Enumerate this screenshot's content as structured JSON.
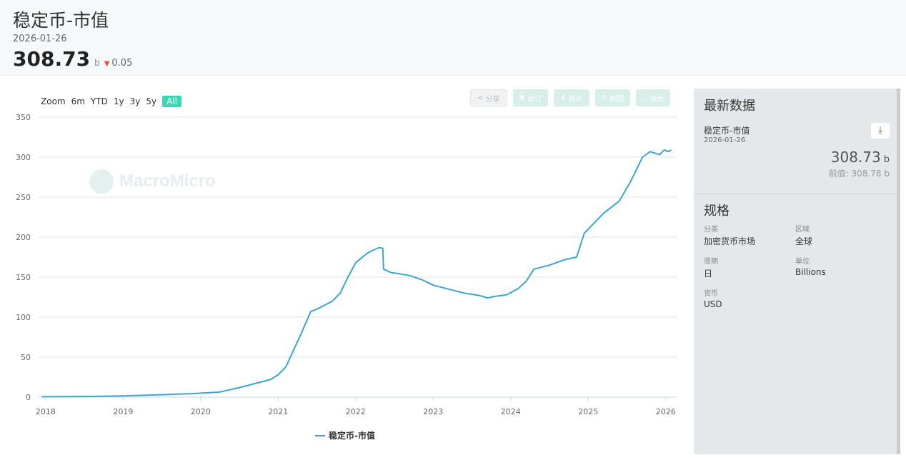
{
  "header": {
    "title": "稳定币-市值",
    "date": "2026-01-26",
    "value": "308.73",
    "unit": "b",
    "change": "0.05"
  },
  "zoom": {
    "label": "Zoom",
    "buttons": [
      "6m",
      "YTD",
      "1y",
      "3y",
      "5y",
      "All"
    ],
    "active": "All"
  },
  "toolbar": {
    "share": "分享",
    "subscribe": "会订",
    "image": "图片",
    "draw": "制图",
    "expand": "放大"
  },
  "watermark": "MacroMicro",
  "sidebar": {
    "latest_title": "最新数据",
    "series_name": "稳定币-市值",
    "series_date": "2026-01-26",
    "value": "308.73",
    "unit": "b",
    "prev_label": "前值:",
    "prev_value": "308.78",
    "spec_title": "规格",
    "category_label": "分类",
    "category": "加密货币市场",
    "region_label": "区域",
    "region": "全球",
    "period_label": "周期",
    "period": "日",
    "unit_label": "单位",
    "unit_value": "Billions",
    "currency_label": "货币",
    "currency": "USD"
  },
  "chart_data": {
    "type": "line",
    "series": [
      {
        "name": "稳定币-市值",
        "color": "#3ba5d1",
        "x": [
          2017.95,
          2018.5,
          2019.0,
          2019.5,
          2019.9,
          2020.2,
          2020.25,
          2020.5,
          2020.7,
          2020.9,
          2021.0,
          2021.1,
          2021.3,
          2021.42,
          2021.5,
          2021.7,
          2021.8,
          2021.9,
          2022.0,
          2022.15,
          2022.3,
          2022.35,
          2022.36,
          2022.45,
          2022.7,
          2022.85,
          2023.0,
          2023.2,
          2023.4,
          2023.6,
          2023.7,
          2023.8,
          2023.95,
          2024.1,
          2024.2,
          2024.3,
          2024.5,
          2024.7,
          2024.85,
          2024.95,
          2025.05,
          2025.2,
          2025.4,
          2025.55,
          2025.7,
          2025.8,
          2025.92,
          2025.98,
          2026.03,
          2026.07
        ],
        "values": [
          0.5,
          0.8,
          1.5,
          3,
          4.5,
          6,
          6.5,
          12,
          17,
          22,
          28,
          38,
          80,
          107,
          110,
          120,
          130,
          150,
          168,
          180,
          187,
          186,
          160,
          156,
          152,
          147,
          140,
          135,
          130,
          127,
          124,
          126,
          128,
          136,
          145,
          160,
          165,
          172,
          175,
          205,
          215,
          230,
          245,
          270,
          300,
          307,
          303,
          309,
          307,
          308.73
        ]
      }
    ],
    "xticks": [
      "2018",
      "2019",
      "2020",
      "2021",
      "2022",
      "2023",
      "2024",
      "2025",
      "2026"
    ],
    "yticks": [
      0,
      50,
      100,
      150,
      200,
      250,
      300,
      350
    ],
    "xlim": [
      2017.9,
      2026.15
    ],
    "ylim": [
      0,
      350
    ],
    "grid": true,
    "legend": "bottom-center",
    "xlabel": "",
    "ylabel": ""
  }
}
